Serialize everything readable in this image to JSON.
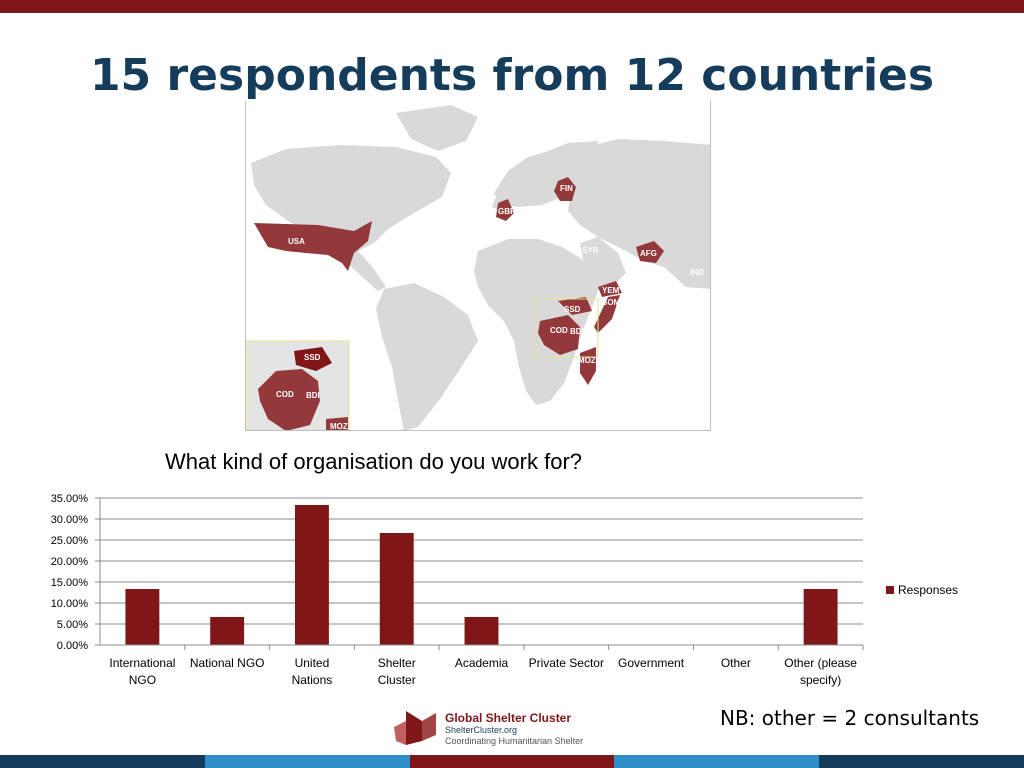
{
  "slide": {
    "title": "15 respondents from 12 countries",
    "note": "NB: other = 2 consultants"
  },
  "colors": {
    "accent": "#7f1618",
    "title": "#163c5c",
    "land": "#d9d9d9",
    "highlight": "#93393b",
    "footer": [
      "#163c5c",
      "#2e8ec9",
      "#7f1618",
      "#2e8ec9",
      "#163c5c"
    ]
  },
  "map": {
    "labels": [
      "FIN",
      "GBR",
      "USA",
      "SYR",
      "AFG",
      "IND",
      "YEM",
      "SOM",
      "SSD",
      "COD",
      "BDI",
      "MOZ"
    ],
    "inset_labels": [
      "SSD",
      "COD",
      "BDI",
      "MOZ"
    ]
  },
  "chart_data": {
    "type": "bar",
    "title": "What kind of organisation do you work for?",
    "categories": [
      "International NGO",
      "National NGO",
      "United Nations",
      "Shelter Cluster",
      "Academia",
      "Private Sector",
      "Government",
      "Other",
      "Other (please specify)"
    ],
    "series": [
      {
        "name": "Responses",
        "values": [
          13.33,
          6.67,
          33.33,
          26.67,
          6.67,
          0,
          0,
          0,
          13.33
        ]
      }
    ],
    "yticks": [
      "0.00%",
      "5.00%",
      "10.00%",
      "15.00%",
      "20.00%",
      "25.00%",
      "30.00%",
      "35.00%"
    ],
    "ylim": [
      0,
      35
    ],
    "grid": true,
    "legend": "right",
    "color": "#7f1618"
  },
  "logo": {
    "name": "Global Shelter Cluster",
    "url": "ShelterCluster.org",
    "tagline": "Coordinating Humanitarian Shelter"
  }
}
